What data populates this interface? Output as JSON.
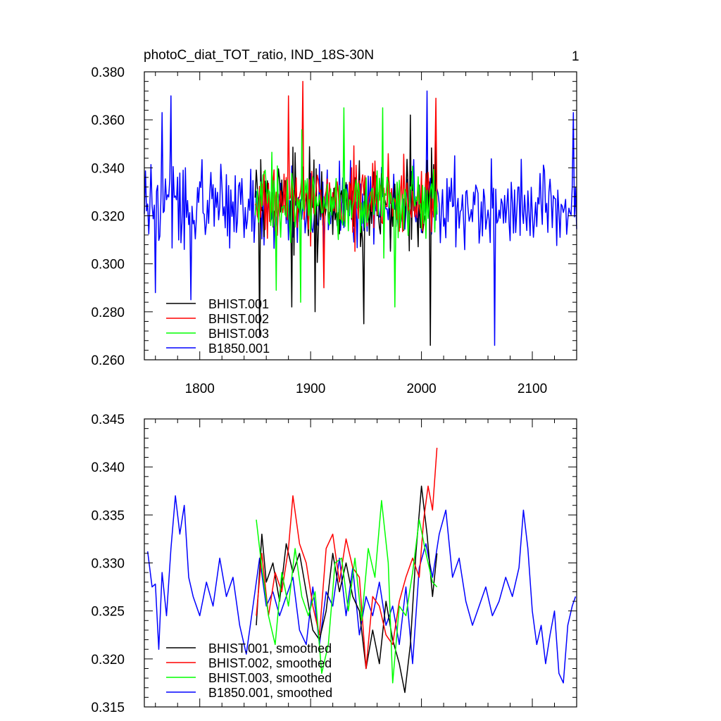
{
  "figure": {
    "title": "photoC_diat_TOT_ratio, IND_18S-30N",
    "panel_number": "1"
  },
  "chart_data": [
    {
      "type": "line",
      "title": "photoC_diat_TOT_ratio, IND_18S-30N",
      "xlim": [
        1750,
        2140
      ],
      "ylim": [
        0.26,
        0.38
      ],
      "x_ticks": [
        1800,
        1900,
        2000,
        2100
      ],
      "x_tick_labels": [
        "1800",
        "1900",
        "2000",
        "2100"
      ],
      "y_ticks": [
        0.26,
        0.28,
        0.3,
        0.32,
        0.34,
        0.36,
        0.38
      ],
      "y_tick_labels": [
        "0.260",
        "0.280",
        "0.300",
        "0.320",
        "0.340",
        "0.360",
        "0.380"
      ],
      "legend_position": "bottom-left",
      "series": [
        {
          "name": "BHIST.001",
          "color": "#000000",
          "x_start": 1850,
          "x_end": 2014,
          "mean": 0.325,
          "amplitude": 0.022,
          "seed": 11,
          "extremes": [
            [
              1854,
              0.27
            ],
            [
              1883,
              0.282
            ],
            [
              1904,
              0.28
            ],
            [
              1948,
              0.275
            ],
            [
              1990,
              0.362
            ],
            [
              2008,
              0.266
            ]
          ]
        },
        {
          "name": "BHIST.002",
          "color": "#ff0000",
          "x_start": 1850,
          "x_end": 2014,
          "mean": 0.327,
          "amplitude": 0.02,
          "seed": 23,
          "extremes": [
            [
              1880,
              0.37
            ],
            [
              1893,
              0.376
            ],
            [
              1912,
              0.29
            ],
            [
              2013,
              0.369
            ]
          ]
        },
        {
          "name": "BHIST.003",
          "color": "#00ff00",
          "x_start": 1850,
          "x_end": 2014,
          "mean": 0.326,
          "amplitude": 0.02,
          "seed": 37,
          "extremes": [
            [
              1869,
              0.289
            ],
            [
              1891,
              0.284
            ],
            [
              1930,
              0.365
            ],
            [
              1965,
              0.365
            ],
            [
              1976,
              0.282
            ]
          ]
        },
        {
          "name": "B1850.001",
          "color": "#0000ff",
          "x_start": 1750,
          "x_end": 2140,
          "mean": 0.324,
          "amplitude": 0.021,
          "seed": 5,
          "extremes": [
            [
              1760,
              0.288
            ],
            [
              1766,
              0.363
            ],
            [
              1774,
              0.37
            ],
            [
              1792,
              0.285
            ],
            [
              2005,
              0.372
            ],
            [
              2066,
              0.266
            ],
            [
              2137,
              0.363
            ]
          ]
        }
      ]
    },
    {
      "type": "line",
      "title": "",
      "xlim": [
        1750,
        2140
      ],
      "ylim": [
        0.315,
        0.345
      ],
      "x_ticks": [
        1800,
        1900,
        2000,
        2100
      ],
      "y_ticks": [
        0.315,
        0.32,
        0.325,
        0.33,
        0.335,
        0.34,
        0.345
      ],
      "y_tick_labels": [
        "0.315",
        "0.320",
        "0.325",
        "0.330",
        "0.335",
        "0.340",
        "0.345"
      ],
      "legend_position": "bottom-left",
      "series": [
        {
          "name": "BHIST.001, smoothed",
          "color": "#000000",
          "x": [
            1851,
            1856,
            1860,
            1866,
            1872,
            1878,
            1884,
            1890,
            1896,
            1902,
            1908,
            1914,
            1920,
            1926,
            1932,
            1938,
            1944,
            1950,
            1956,
            1962,
            1968,
            1974,
            1980,
            1985,
            1990,
            1995,
            2000,
            2005,
            2010,
            2014
          ],
          "y": [
            0.3235,
            0.333,
            0.328,
            0.33,
            0.326,
            0.332,
            0.329,
            0.331,
            0.327,
            0.323,
            0.322,
            0.325,
            0.331,
            0.327,
            0.33,
            0.3265,
            0.325,
            0.319,
            0.323,
            0.3195,
            0.326,
            0.322,
            0.3195,
            0.3165,
            0.3215,
            0.331,
            0.338,
            0.333,
            0.3265,
            0.331
          ]
        },
        {
          "name": "BHIST.002, smoothed",
          "color": "#ff0000",
          "x": [
            1851,
            1856,
            1862,
            1868,
            1874,
            1880,
            1884,
            1890,
            1896,
            1902,
            1908,
            1914,
            1920,
            1926,
            1932,
            1938,
            1944,
            1950,
            1956,
            1962,
            1968,
            1974,
            1980,
            1986,
            1992,
            1998,
            2002,
            2006,
            2010,
            2014
          ],
          "y": [
            0.3245,
            0.331,
            0.3245,
            0.329,
            0.327,
            0.3315,
            0.337,
            0.332,
            0.33,
            0.3255,
            0.3225,
            0.3315,
            0.333,
            0.328,
            0.3325,
            0.3295,
            0.3285,
            0.319,
            0.3265,
            0.3255,
            0.3225,
            0.3215,
            0.326,
            0.3285,
            0.3305,
            0.3285,
            0.3345,
            0.338,
            0.3355,
            0.342
          ]
        },
        {
          "name": "BHIST.003, smoothed",
          "color": "#00ff00",
          "x": [
            1851,
            1856,
            1862,
            1868,
            1874,
            1880,
            1886,
            1892,
            1898,
            1904,
            1910,
            1916,
            1922,
            1928,
            1934,
            1940,
            1946,
            1952,
            1958,
            1964,
            1970,
            1974,
            1980,
            1986,
            1992,
            1998,
            2004,
            2010,
            2014
          ],
          "y": [
            0.3345,
            0.3295,
            0.3245,
            0.3215,
            0.329,
            0.3255,
            0.3315,
            0.3265,
            0.3245,
            0.327,
            0.3185,
            0.3215,
            0.33,
            0.3305,
            0.325,
            0.3305,
            0.324,
            0.3315,
            0.3285,
            0.3365,
            0.33,
            0.3175,
            0.3255,
            0.3245,
            0.329,
            0.3345,
            0.331,
            0.328,
            0.3275
          ]
        },
        {
          "name": "B1850.001, smoothed",
          "color": "#0000ff",
          "x": [
            1753,
            1757,
            1760,
            1763,
            1766,
            1770,
            1774,
            1778,
            1782,
            1786,
            1790,
            1794,
            1800,
            1806,
            1812,
            1818,
            1824,
            1830,
            1836,
            1842,
            1848,
            1854,
            1860,
            1866,
            1872,
            1878,
            1884,
            1890,
            1896,
            1902,
            1908,
            1914,
            1920,
            1926,
            1932,
            1938,
            1944,
            1950,
            1956,
            1962,
            1968,
            1974,
            1980,
            1986,
            1992,
            1998,
            2004,
            2010,
            2016,
            2022,
            2028,
            2034,
            2040,
            2046,
            2052,
            2058,
            2064,
            2070,
            2076,
            2082,
            2088,
            2092,
            2096,
            2100,
            2104,
            2108,
            2112,
            2116,
            2120,
            2124,
            2128,
            2132,
            2136,
            2139
          ],
          "y": [
            0.3312,
            0.3275,
            0.3278,
            0.321,
            0.329,
            0.3245,
            0.3315,
            0.337,
            0.333,
            0.336,
            0.3285,
            0.3265,
            0.3245,
            0.328,
            0.3255,
            0.3305,
            0.3265,
            0.3285,
            0.3235,
            0.3205,
            0.3255,
            0.3305,
            0.3255,
            0.327,
            0.3245,
            0.3265,
            0.3285,
            0.323,
            0.3215,
            0.3275,
            0.3215,
            0.327,
            0.3255,
            0.3305,
            0.3245,
            0.3295,
            0.3225,
            0.3265,
            0.3245,
            0.328,
            0.3235,
            0.3255,
            0.3215,
            0.3275,
            0.3195,
            0.3295,
            0.332,
            0.3285,
            0.333,
            0.3355,
            0.3285,
            0.3305,
            0.326,
            0.3235,
            0.3255,
            0.3275,
            0.3245,
            0.326,
            0.3285,
            0.3265,
            0.3295,
            0.3355,
            0.3315,
            0.325,
            0.3215,
            0.3235,
            0.3195,
            0.3225,
            0.325,
            0.3185,
            0.3175,
            0.3235,
            0.3255,
            0.3265
          ]
        }
      ]
    }
  ]
}
